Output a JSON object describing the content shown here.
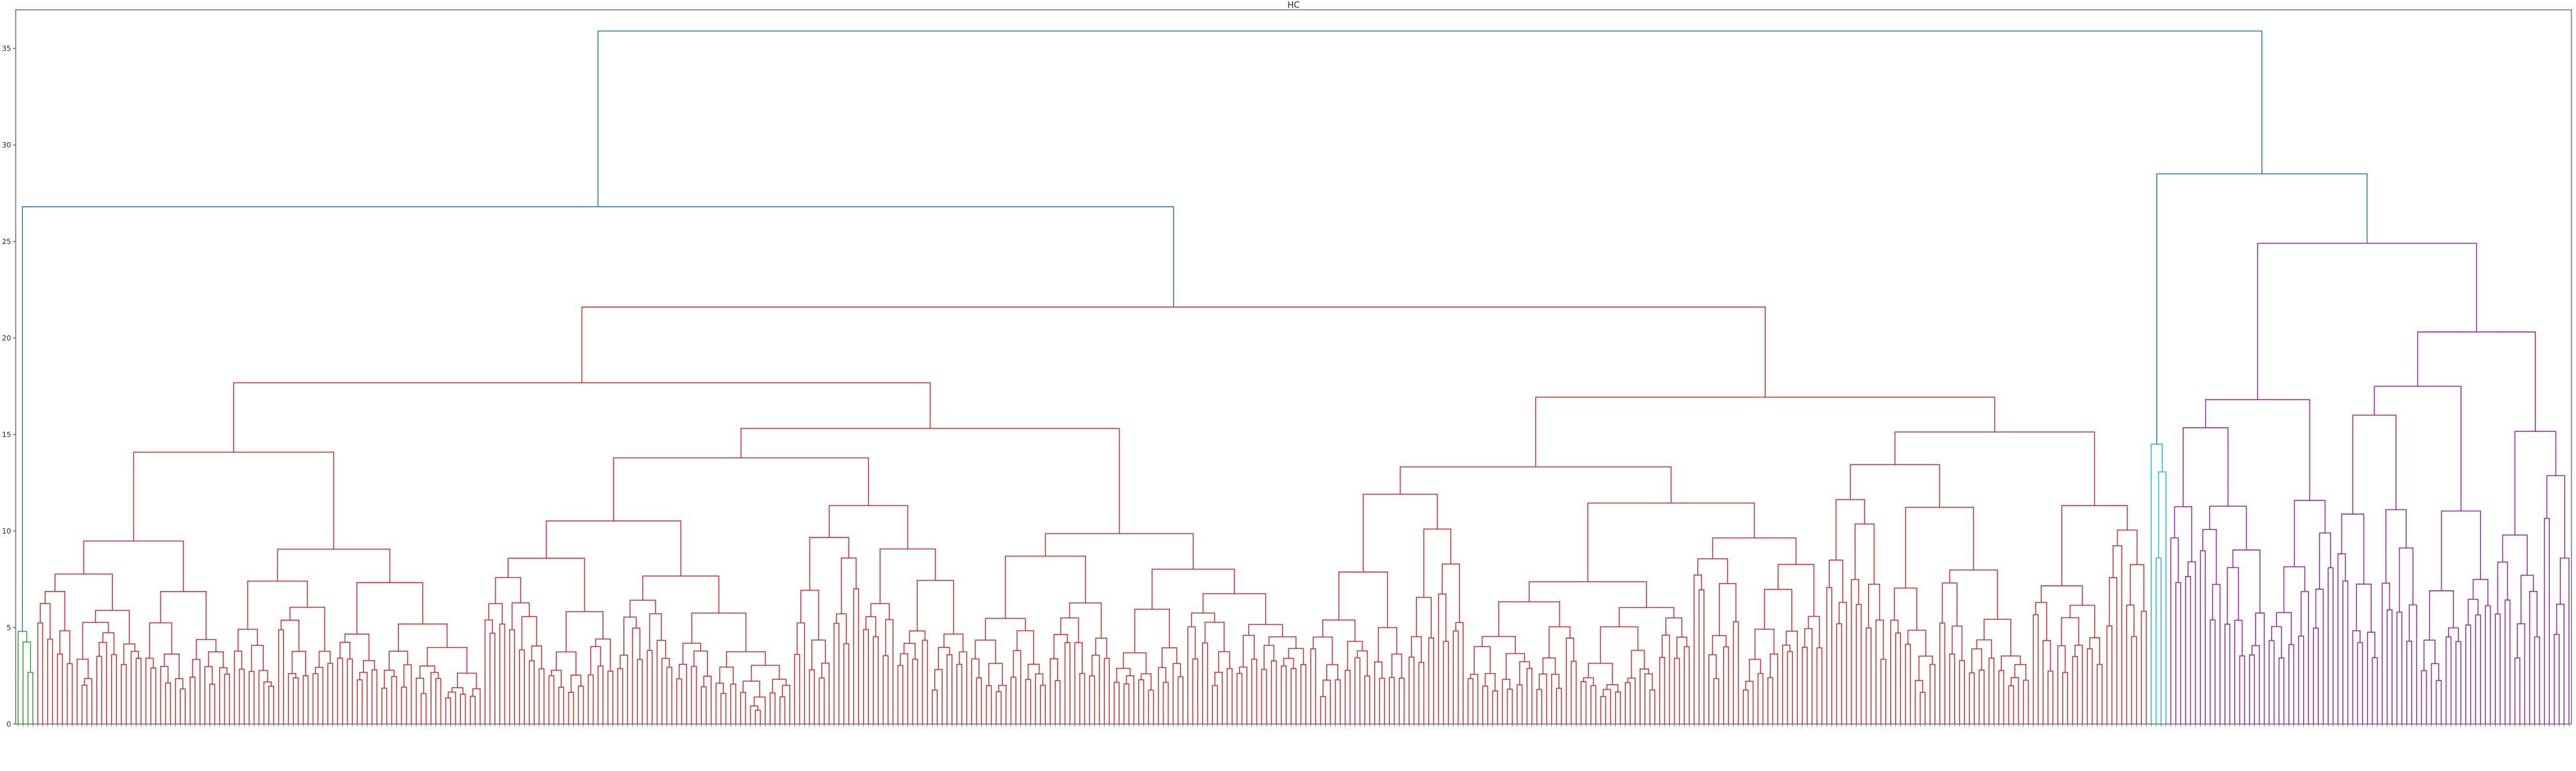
{
  "chart_data": {
    "type": "dendrogram",
    "title": "HC",
    "xlabel": "",
    "ylabel": "",
    "ylim": [
      0,
      37
    ],
    "yticks": [
      0,
      5,
      10,
      15,
      20,
      25,
      30,
      35
    ],
    "grid": false,
    "n_leaves": 520,
    "cluster_colors": {
      "green": "#2ca02c",
      "red": "#d62728",
      "cyan": "#17becf",
      "magenta": "#9e1f9e",
      "above_threshold": "#1f77b4"
    },
    "clusters": [
      {
        "color": "green",
        "leaves": 4,
        "merge_height": 4.8
      },
      {
        "color": "red",
        "leaves": 430,
        "merge_height": 21.6
      },
      {
        "color": "cyan",
        "leaves": 4,
        "merge_height": 14.5
      },
      {
        "color": "magenta",
        "leaves": 82,
        "merge_height": 24.9
      }
    ],
    "top_links": [
      {
        "children": [
          "green",
          "red"
        ],
        "height": 26.8
      },
      {
        "children": [
          "cyan",
          "magenta"
        ],
        "height": 28.5
      },
      {
        "children": [
          "green+red",
          "cyan+magenta"
        ],
        "height": 35.9
      }
    ]
  }
}
